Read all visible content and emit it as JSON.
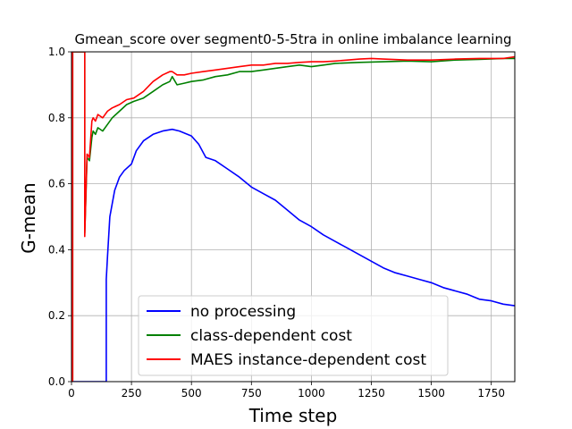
{
  "chart_data": {
    "type": "line",
    "title": "Gmean_score over segment0-5-5tra in online imbalance learning",
    "xlabel": "Time step",
    "ylabel": "G-mean",
    "xlim": [
      0,
      1848
    ],
    "ylim": [
      0,
      1.0
    ],
    "xticks": [
      0,
      250,
      500,
      750,
      1000,
      1250,
      1500,
      1750
    ],
    "yticks": [
      0.0,
      0.2,
      0.4,
      0.6,
      0.8,
      1.0
    ],
    "xtick_labels": [
      "0",
      "250",
      "500",
      "750",
      "1000",
      "1250",
      "1500",
      "1750"
    ],
    "ytick_labels": [
      "0.0",
      "0.2",
      "0.4",
      "0.6",
      "0.8",
      "1.0"
    ],
    "grid": true,
    "legend_position": "lower-right",
    "series": [
      {
        "name": "no processing",
        "color": "#0000ff",
        "x": [
          0,
          145,
          145,
          150,
          160,
          170,
          180,
          200,
          220,
          250,
          270,
          300,
          340,
          380,
          420,
          450,
          500,
          530,
          560,
          600,
          650,
          700,
          750,
          800,
          850,
          900,
          950,
          1000,
          1050,
          1100,
          1150,
          1200,
          1250,
          1300,
          1350,
          1400,
          1450,
          1500,
          1550,
          1600,
          1650,
          1700,
          1750,
          1800,
          1848
        ],
        "y": [
          0,
          0,
          0.31,
          0.38,
          0.5,
          0.54,
          0.58,
          0.62,
          0.64,
          0.66,
          0.7,
          0.73,
          0.75,
          0.76,
          0.765,
          0.76,
          0.745,
          0.72,
          0.68,
          0.67,
          0.645,
          0.62,
          0.59,
          0.57,
          0.55,
          0.52,
          0.49,
          0.47,
          0.445,
          0.425,
          0.405,
          0.385,
          0.365,
          0.345,
          0.33,
          0.32,
          0.31,
          0.3,
          0.285,
          0.275,
          0.265,
          0.25,
          0.245,
          0.235,
          0.23
        ]
      },
      {
        "name": "class-dependent cost",
        "color": "#008000",
        "x": [
          0,
          5,
          5,
          55,
          55,
          60,
          65,
          75,
          85,
          90,
          100,
          110,
          130,
          150,
          170,
          200,
          230,
          260,
          300,
          340,
          380,
          410,
          420,
          440,
          470,
          500,
          550,
          600,
          650,
          700,
          750,
          800,
          850,
          900,
          950,
          1000,
          1050,
          1100,
          1200,
          1300,
          1400,
          1500,
          1600,
          1700,
          1800,
          1848
        ],
        "y": [
          0,
          0,
          1.0,
          1.0,
          0.45,
          0.56,
          0.68,
          0.67,
          0.74,
          0.76,
          0.75,
          0.77,
          0.76,
          0.78,
          0.8,
          0.82,
          0.84,
          0.85,
          0.86,
          0.88,
          0.9,
          0.91,
          0.925,
          0.9,
          0.905,
          0.91,
          0.915,
          0.925,
          0.93,
          0.94,
          0.94,
          0.945,
          0.95,
          0.955,
          0.96,
          0.955,
          0.96,
          0.965,
          0.968,
          0.97,
          0.972,
          0.97,
          0.975,
          0.977,
          0.98,
          0.98
        ]
      },
      {
        "name": "MAES instance-dependent cost",
        "color": "#ff0000",
        "x": [
          0,
          5,
          5,
          55,
          55,
          60,
          65,
          75,
          85,
          90,
          100,
          110,
          130,
          150,
          170,
          200,
          230,
          260,
          300,
          340,
          380,
          410,
          420,
          440,
          470,
          500,
          550,
          600,
          650,
          700,
          750,
          800,
          850,
          900,
          950,
          1000,
          1050,
          1100,
          1150,
          1200,
          1250,
          1300,
          1400,
          1500,
          1600,
          1700,
          1800,
          1848
        ],
        "y": [
          0,
          0,
          1.0,
          1.0,
          0.44,
          0.57,
          0.69,
          0.68,
          0.79,
          0.8,
          0.79,
          0.81,
          0.8,
          0.82,
          0.83,
          0.84,
          0.855,
          0.86,
          0.88,
          0.91,
          0.93,
          0.94,
          0.94,
          0.93,
          0.93,
          0.935,
          0.94,
          0.945,
          0.95,
          0.955,
          0.96,
          0.96,
          0.965,
          0.965,
          0.968,
          0.97,
          0.97,
          0.972,
          0.975,
          0.978,
          0.98,
          0.978,
          0.975,
          0.975,
          0.978,
          0.98,
          0.98,
          0.985
        ]
      }
    ]
  }
}
